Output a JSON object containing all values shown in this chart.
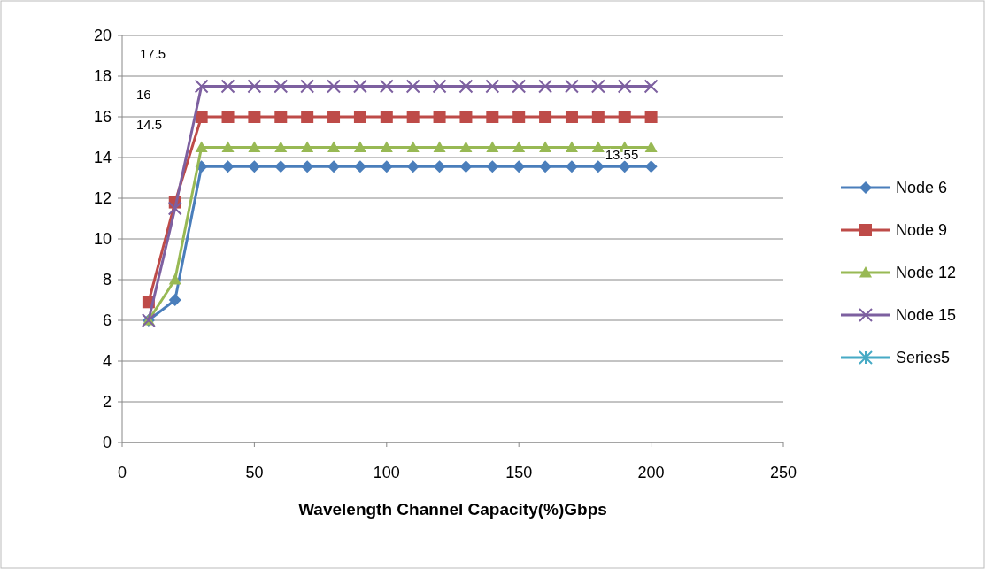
{
  "chart_data": {
    "type": "line",
    "xlabel": "Wavelength Channel Capacity(%)Gbps",
    "x": [
      10,
      20,
      30,
      40,
      50,
      60,
      70,
      80,
      90,
      100,
      110,
      120,
      130,
      140,
      150,
      160,
      170,
      180,
      190,
      200
    ],
    "xlim": [
      0,
      250
    ],
    "xticks": [
      0,
      50,
      100,
      150,
      200,
      250
    ],
    "ylim": [
      0,
      20
    ],
    "yticks": [
      0,
      2,
      4,
      6,
      8,
      10,
      12,
      14,
      16,
      18,
      20
    ],
    "grid": "y",
    "legend": "right",
    "series": [
      {
        "name": "Node 6",
        "color": "#4a7ebb",
        "marker": "diamond",
        "values": [
          6,
          7,
          13.55,
          13.55,
          13.55,
          13.55,
          13.55,
          13.55,
          13.55,
          13.55,
          13.55,
          13.55,
          13.55,
          13.55,
          13.55,
          13.55,
          13.55,
          13.55,
          13.55,
          13.55
        ]
      },
      {
        "name": "Node 9",
        "color": "#be4b48",
        "marker": "square",
        "values": [
          6.9,
          11.8,
          16,
          16,
          16,
          16,
          16,
          16,
          16,
          16,
          16,
          16,
          16,
          16,
          16,
          16,
          16,
          16,
          16,
          16
        ]
      },
      {
        "name": "Node 12",
        "color": "#98b954",
        "marker": "triangle",
        "values": [
          6,
          8,
          14.5,
          14.5,
          14.5,
          14.5,
          14.5,
          14.5,
          14.5,
          14.5,
          14.5,
          14.5,
          14.5,
          14.5,
          14.5,
          14.5,
          14.5,
          14.5,
          14.5,
          14.5
        ]
      },
      {
        "name": "Node 15",
        "color": "#7d60a0",
        "marker": "cross",
        "values": [
          6,
          11.5,
          17.5,
          17.5,
          17.5,
          17.5,
          17.5,
          17.5,
          17.5,
          17.5,
          17.5,
          17.5,
          17.5,
          17.5,
          17.5,
          17.5,
          17.5,
          17.5,
          17.5,
          17.5
        ]
      },
      {
        "name": "Series5",
        "color": "#46aac5",
        "marker": "star",
        "values": [
          null,
          null,
          null,
          null,
          null,
          null,
          null,
          null,
          null,
          null,
          null,
          null,
          null,
          null,
          null,
          null,
          null,
          null,
          null,
          null
        ]
      }
    ],
    "annotations": [
      "17.5",
      "16",
      "14.5",
      {
        "text": "13.55",
        "x": 190,
        "y": 13.55
      }
    ]
  }
}
